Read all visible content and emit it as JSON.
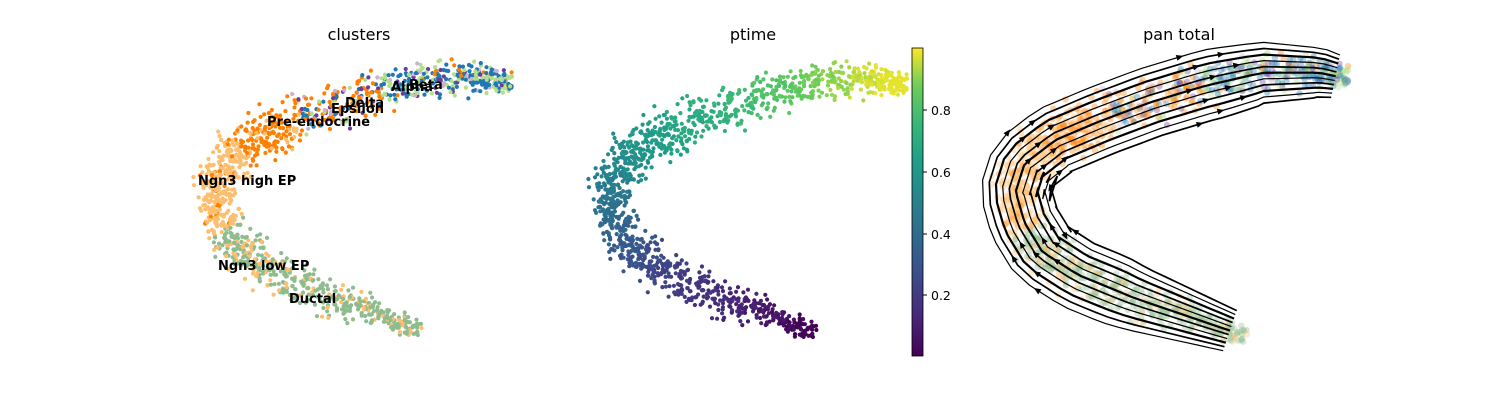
{
  "chart_data": [
    {
      "type": "scatter",
      "title": "clusters",
      "axes_visible": false,
      "legend": "on data",
      "clusters": [
        {
          "name": "Ductal",
          "color": "#8fbc8f"
        },
        {
          "name": "Ngn3 low EP",
          "color": "#8fbc8f"
        },
        {
          "name": "Ngn3 high EP",
          "color": "#fdbf6f"
        },
        {
          "name": "Pre-endocrine",
          "color": "#ff7f00"
        },
        {
          "name": "Epsilon",
          "color": "#cab2d6"
        },
        {
          "name": "Delta",
          "color": "#6a3d9a"
        },
        {
          "name": "Alpha",
          "color": "#1f78b4"
        },
        {
          "name": "Beta",
          "color": "#b2df8a"
        }
      ]
    },
    {
      "type": "scatter",
      "title": "ptime",
      "axes_visible": false,
      "colormap": "viridis",
      "colorbar": {
        "range": [
          0.0,
          1.0
        ],
        "ticks": [
          "0.2",
          "0.4",
          "0.6",
          "0.8"
        ]
      }
    },
    {
      "type": "scatter",
      "subtype": "velocity stream plot",
      "title": "pan total",
      "axes_visible": false,
      "streamlines_color": "#000000"
    }
  ]
}
